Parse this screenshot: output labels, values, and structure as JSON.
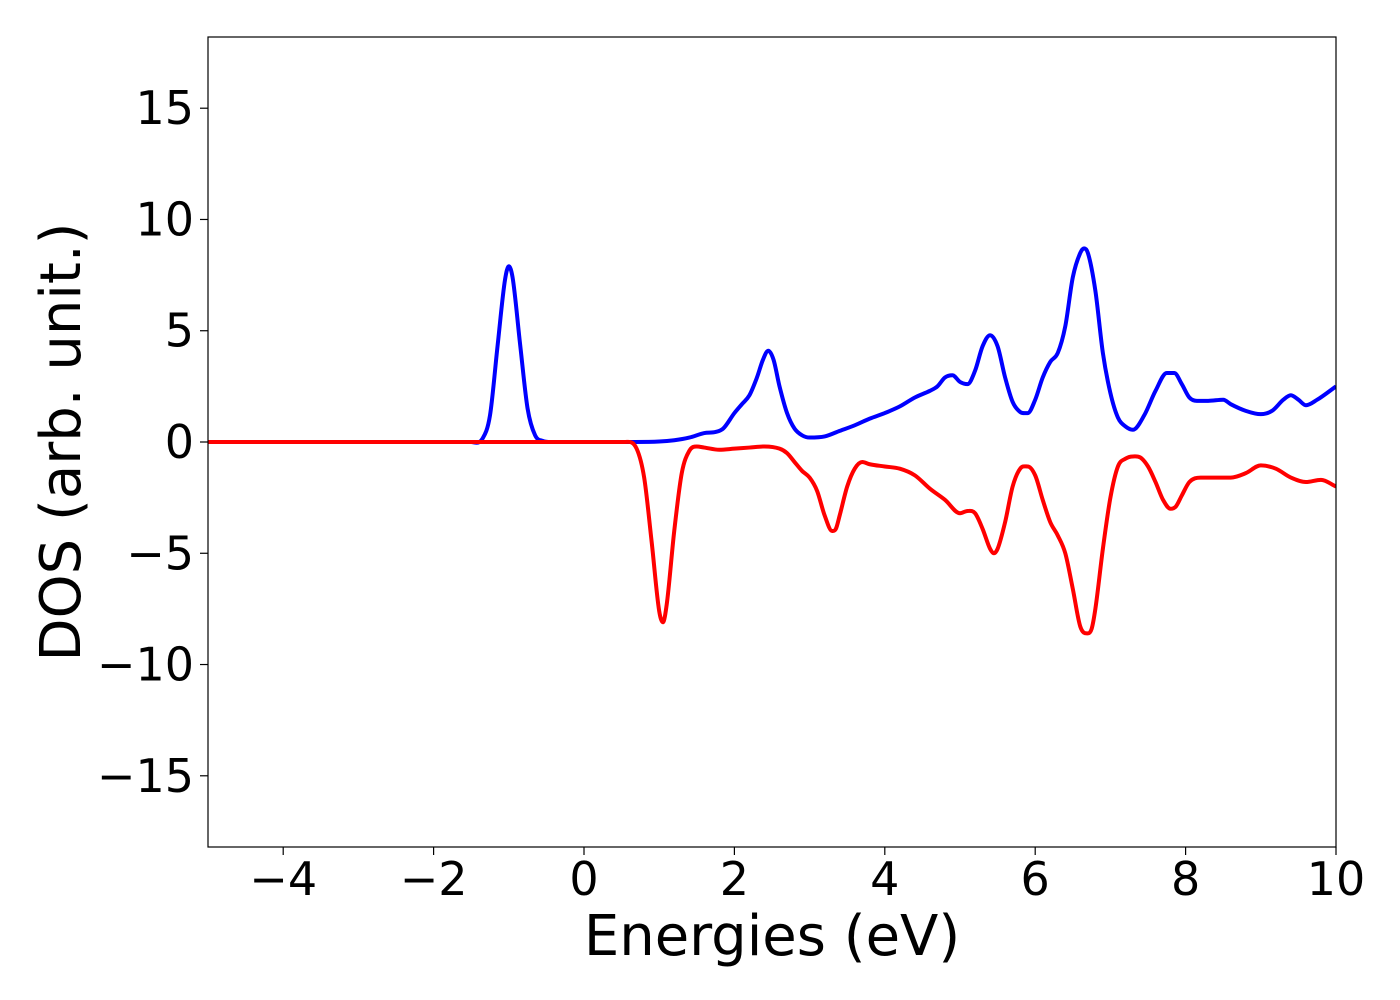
{
  "chart_data": {
    "type": "line",
    "title": "",
    "xlabel": "Energies (eV)",
    "ylabel": "DOS (arb. unit.)",
    "xlim": [
      -5,
      10
    ],
    "ylim": [
      -18.2,
      18.2
    ],
    "xticks": [
      -4,
      -2,
      0,
      2,
      4,
      6,
      8,
      10
    ],
    "xtick_labels": [
      "−4",
      "−2",
      "0",
      "2",
      "4",
      "6",
      "8",
      "10"
    ],
    "yticks": [
      15,
      10,
      5,
      0,
      -5,
      -10,
      -15
    ],
    "ytick_labels": [
      "15",
      "10",
      "5",
      "0",
      "−5",
      "−10",
      "−15"
    ],
    "grid": false,
    "legend": "none",
    "series": [
      {
        "color": "#0000ff",
        "x": [
          -5.0,
          -1.5,
          -1.35,
          -1.25,
          -1.15,
          -1.05,
          -1.0,
          -0.95,
          -0.85,
          -0.75,
          -0.65,
          -0.55,
          -0.4,
          0.0,
          0.5,
          1.0,
          1.2,
          1.4,
          1.6,
          1.75,
          1.85,
          2.0,
          2.1,
          2.2,
          2.3,
          2.38,
          2.45,
          2.52,
          2.6,
          2.7,
          2.8,
          2.9,
          3.0,
          3.2,
          3.4,
          3.6,
          3.8,
          4.0,
          4.2,
          4.4,
          4.6,
          4.7,
          4.8,
          4.9,
          5.0,
          5.1,
          5.2,
          5.3,
          5.4,
          5.5,
          5.6,
          5.7,
          5.8,
          5.9,
          6.0,
          6.1,
          6.2,
          6.3,
          6.4,
          6.5,
          6.6,
          6.65,
          6.7,
          6.8,
          6.9,
          7.0,
          7.1,
          7.2,
          7.3,
          7.45,
          7.6,
          7.75,
          7.85,
          7.95,
          8.05,
          8.15,
          8.3,
          8.5,
          8.6,
          8.8,
          9.0,
          9.15,
          9.3,
          9.4,
          9.5,
          9.6,
          9.75,
          10.0
        ],
        "y": [
          0,
          0,
          0.15,
          1.2,
          4.3,
          7.3,
          7.9,
          7.4,
          4.4,
          1.5,
          0.3,
          0.05,
          0,
          0,
          0,
          0.02,
          0.08,
          0.2,
          0.4,
          0.45,
          0.6,
          1.3,
          1.7,
          2.1,
          2.9,
          3.7,
          4.1,
          3.7,
          2.5,
          1.3,
          0.6,
          0.3,
          0.2,
          0.25,
          0.5,
          0.75,
          1.05,
          1.3,
          1.6,
          2.0,
          2.3,
          2.5,
          2.9,
          3.0,
          2.7,
          2.6,
          3.2,
          4.3,
          4.8,
          4.3,
          2.9,
          1.8,
          1.35,
          1.3,
          1.9,
          2.9,
          3.6,
          4.0,
          5.2,
          7.4,
          8.5,
          8.7,
          8.5,
          6.8,
          4.0,
          2.2,
          1.1,
          0.7,
          0.55,
          1.2,
          2.3,
          3.1,
          3.1,
          2.6,
          2.0,
          1.85,
          1.85,
          1.9,
          1.7,
          1.4,
          1.25,
          1.4,
          1.9,
          2.1,
          1.9,
          1.65,
          1.9,
          2.5
        ]
      },
      {
        "color": "#ff0000",
        "x": [
          -5.0,
          0.0,
          0.55,
          0.7,
          0.8,
          0.9,
          1.0,
          1.05,
          1.1,
          1.2,
          1.3,
          1.4,
          1.5,
          1.6,
          1.8,
          2.0,
          2.2,
          2.4,
          2.6,
          2.7,
          2.8,
          2.9,
          3.0,
          3.1,
          3.2,
          3.3,
          3.35,
          3.4,
          3.5,
          3.6,
          3.7,
          3.8,
          4.0,
          4.2,
          4.4,
          4.6,
          4.8,
          5.0,
          5.1,
          5.2,
          5.3,
          5.4,
          5.45,
          5.5,
          5.6,
          5.7,
          5.8,
          5.9,
          6.0,
          6.1,
          6.2,
          6.3,
          6.4,
          6.5,
          6.6,
          6.7,
          6.75,
          6.8,
          6.9,
          7.0,
          7.1,
          7.2,
          7.3,
          7.4,
          7.5,
          7.6,
          7.7,
          7.8,
          7.87,
          7.95,
          8.05,
          8.2,
          8.4,
          8.6,
          8.8,
          9.0,
          9.2,
          9.4,
          9.6,
          9.8,
          10.0
        ],
        "y": [
          0,
          0,
          0,
          -0.3,
          -1.6,
          -4.5,
          -7.6,
          -8.1,
          -7.3,
          -4.0,
          -1.4,
          -0.4,
          -0.2,
          -0.25,
          -0.35,
          -0.3,
          -0.25,
          -0.2,
          -0.3,
          -0.5,
          -0.9,
          -1.3,
          -1.6,
          -2.2,
          -3.3,
          -4.0,
          -3.9,
          -3.3,
          -2.0,
          -1.2,
          -0.9,
          -1.0,
          -1.1,
          -1.2,
          -1.5,
          -2.1,
          -2.6,
          -3.2,
          -3.1,
          -3.2,
          -3.9,
          -4.8,
          -5.0,
          -4.8,
          -3.6,
          -2.0,
          -1.2,
          -1.1,
          -1.5,
          -2.6,
          -3.6,
          -4.2,
          -5.0,
          -6.6,
          -8.3,
          -8.6,
          -8.4,
          -7.5,
          -4.8,
          -2.5,
          -1.1,
          -0.75,
          -0.65,
          -0.7,
          -1.1,
          -1.8,
          -2.6,
          -3.0,
          -2.9,
          -2.4,
          -1.8,
          -1.6,
          -1.6,
          -1.6,
          -1.4,
          -1.05,
          -1.2,
          -1.6,
          -1.8,
          -1.7,
          -2.0
        ]
      }
    ]
  }
}
